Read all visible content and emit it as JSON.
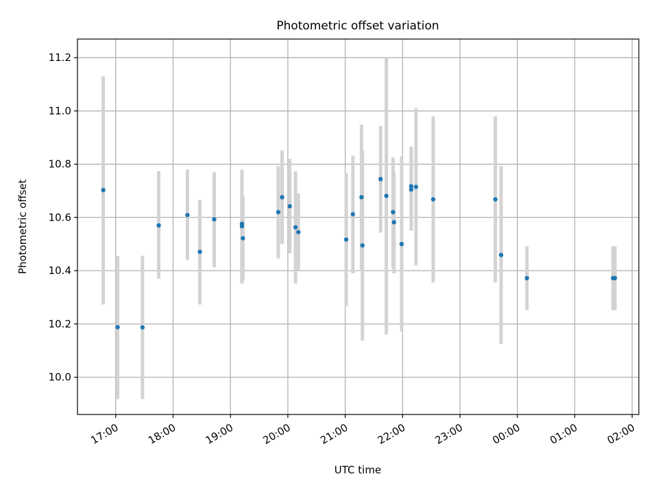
{
  "chart_data": {
    "type": "scatter",
    "title": "Photometric offset variation",
    "xlabel": "UTC time",
    "ylabel": "Photometric offset",
    "x_axis": {
      "kind": "time",
      "tick_labels": [
        "17:00",
        "18:00",
        "19:00",
        "20:00",
        "21:00",
        "22:00",
        "23:00",
        "00:00",
        "01:00",
        "02:00"
      ],
      "tick_times": [
        "17:00",
        "18:00",
        "19:00",
        "20:00",
        "21:00",
        "22:00",
        "23:00",
        "00:00",
        "01:00",
        "02:00"
      ],
      "range": [
        "16:20",
        "02:07"
      ]
    },
    "y_axis": {
      "tick_labels": [
        "10.0",
        "10.2",
        "10.4",
        "10.6",
        "10.8",
        "11.0",
        "11.2"
      ],
      "ticks": [
        10.0,
        10.2,
        10.4,
        10.6,
        10.8,
        11.0,
        11.2
      ],
      "ylim": [
        9.86,
        11.27
      ]
    },
    "grid": true,
    "legend": "none",
    "marker_color": "#1f77b4",
    "errorbar_color": "#d3d3d3",
    "series": [
      {
        "points": [
          {
            "x": "16:47",
            "y": 10.703,
            "lo": 10.273,
            "hi": 11.13
          },
          {
            "x": "17:02",
            "y": 10.188,
            "lo": 9.918,
            "hi": 10.456
          },
          {
            "x": "17:28",
            "y": 10.187,
            "lo": 9.918,
            "hi": 10.456
          },
          {
            "x": "17:45",
            "y": 10.57,
            "lo": 10.37,
            "hi": 10.774
          },
          {
            "x": "18:15",
            "y": 10.609,
            "lo": 10.44,
            "hi": 10.78
          },
          {
            "x": "18:28",
            "y": 10.471,
            "lo": 10.273,
            "hi": 10.666
          },
          {
            "x": "18:43",
            "y": 10.593,
            "lo": 10.413,
            "hi": 10.77
          },
          {
            "x": "19:12",
            "y": 10.576,
            "lo": 10.37,
            "hi": 10.78
          },
          {
            "x": "19:12",
            "y": 10.567,
            "lo": 10.352,
            "hi": 10.78
          },
          {
            "x": "19:13",
            "y": 10.522,
            "lo": 10.362,
            "hi": 10.68
          },
          {
            "x": "19:50",
            "y": 10.62,
            "lo": 10.446,
            "hi": 10.793
          },
          {
            "x": "19:54",
            "y": 10.676,
            "lo": 10.5,
            "hi": 10.852
          },
          {
            "x": "20:02",
            "y": 10.642,
            "lo": 10.466,
            "hi": 10.82
          },
          {
            "x": "20:08",
            "y": 10.563,
            "lo": 10.352,
            "hi": 10.773
          },
          {
            "x": "20:11",
            "y": 10.545,
            "lo": 10.4,
            "hi": 10.69
          },
          {
            "x": "21:01",
            "y": 10.517,
            "lo": 10.267,
            "hi": 10.767
          },
          {
            "x": "21:08",
            "y": 10.612,
            "lo": 10.39,
            "hi": 10.832
          },
          {
            "x": "21:17",
            "y": 10.676,
            "lo": 10.4,
            "hi": 10.948
          },
          {
            "x": "21:18",
            "y": 10.495,
            "lo": 10.137,
            "hi": 10.852
          },
          {
            "x": "21:37",
            "y": 10.744,
            "lo": 10.543,
            "hi": 10.944
          },
          {
            "x": "21:43",
            "y": 10.681,
            "lo": 10.16,
            "hi": 11.2
          },
          {
            "x": "21:50",
            "y": 10.62,
            "lo": 10.41,
            "hi": 10.825
          },
          {
            "x": "21:51",
            "y": 10.582,
            "lo": 10.39,
            "hi": 10.77
          },
          {
            "x": "21:59",
            "y": 10.5,
            "lo": 10.172,
            "hi": 10.829
          },
          {
            "x": "22:09",
            "y": 10.717,
            "lo": 10.57,
            "hi": 10.866
          },
          {
            "x": "22:09",
            "y": 10.705,
            "lo": 10.55,
            "hi": 10.86
          },
          {
            "x": "22:14",
            "y": 10.715,
            "lo": 10.42,
            "hi": 11.01
          },
          {
            "x": "22:32",
            "y": 10.668,
            "lo": 10.356,
            "hi": 10.98
          },
          {
            "x": "23:37",
            "y": 10.668,
            "lo": 10.356,
            "hi": 10.98
          },
          {
            "x": "23:43",
            "y": 10.459,
            "lo": 10.125,
            "hi": 10.793
          },
          {
            "x": "00:10",
            "y": 10.372,
            "lo": 10.252,
            "hi": 10.492
          },
          {
            "x": "01:40",
            "y": 10.372,
            "lo": 10.252,
            "hi": 10.492
          },
          {
            "x": "01:42",
            "y": 10.372,
            "lo": 10.252,
            "hi": 10.492
          }
        ]
      }
    ]
  }
}
